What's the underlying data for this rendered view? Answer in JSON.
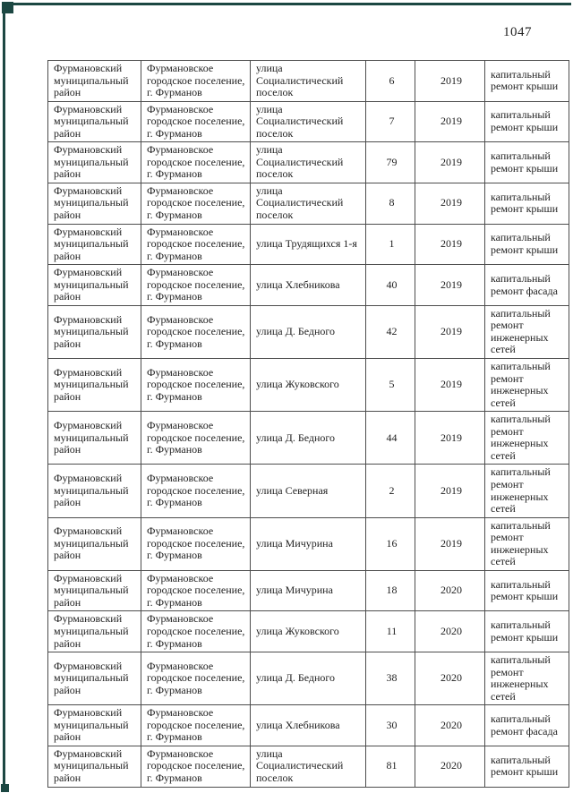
{
  "page_number": "1047",
  "accent_color": "#1c4742",
  "table": {
    "rows": [
      {
        "district": "Фурмановский муниципальный район",
        "settlement": "Фурмановское городское поселение, г. Фурманов",
        "street": "улица Социалистический поселок",
        "house": "6",
        "year": "2019",
        "work": "капитальный ремонт крыши"
      },
      {
        "district": "Фурмановский муниципальный район",
        "settlement": "Фурмановское городское поселение, г. Фурманов",
        "street": "улица Социалистический поселок",
        "house": "7",
        "year": "2019",
        "work": "капитальный ремонт крыши"
      },
      {
        "district": "Фурмановский муниципальный район",
        "settlement": "Фурмановское городское поселение, г. Фурманов",
        "street": "улица Социалистический поселок",
        "house": "79",
        "year": "2019",
        "work": "капитальный ремонт крыши"
      },
      {
        "district": "Фурмановский муниципальный район",
        "settlement": "Фурмановское городское поселение, г. Фурманов",
        "street": "улица Социалистический поселок",
        "house": "8",
        "year": "2019",
        "work": "капитальный ремонт крыши"
      },
      {
        "district": "Фурмановский муниципальный район",
        "settlement": "Фурмановское городское поселение, г. Фурманов",
        "street": "улица Трудящихся 1-я",
        "house": "1",
        "year": "2019",
        "work": "капитальный ремонт крыши"
      },
      {
        "district": "Фурмановский муниципальный район",
        "settlement": "Фурмановское городское поселение, г. Фурманов",
        "street": "улица Хлебникова",
        "house": "40",
        "year": "2019",
        "work": "капитальный ремонт фасада"
      },
      {
        "district": "Фурмановский муниципальный район",
        "settlement": "Фурмановское городское поселение, г. Фурманов",
        "street": "улица Д. Бедного",
        "house": "42",
        "year": "2019",
        "work": "капитальный ремонт инженерных сетей"
      },
      {
        "district": "Фурмановский муниципальный район",
        "settlement": "Фурмановское городское поселение, г. Фурманов",
        "street": "улица Жуковского",
        "house": "5",
        "year": "2019",
        "work": "капитальный ремонт инженерных сетей"
      },
      {
        "district": "Фурмановский муниципальный район",
        "settlement": "Фурмановское городское поселение, г. Фурманов",
        "street": "улица Д. Бедного",
        "house": "44",
        "year": "2019",
        "work": "капитальный ремонт инженерных сетей"
      },
      {
        "district": "Фурмановский муниципальный район",
        "settlement": "Фурмановское городское поселение, г. Фурманов",
        "street": "улица Северная",
        "house": "2",
        "year": "2019",
        "work": "капитальный ремонт инженерных сетей"
      },
      {
        "district": "Фурмановский муниципальный район",
        "settlement": "Фурмановское городское поселение, г. Фурманов",
        "street": "улица Мичурина",
        "house": "16",
        "year": "2019",
        "work": "капитальный ремонт инженерных сетей"
      },
      {
        "district": "Фурмановский муниципальный район",
        "settlement": "Фурмановское городское поселение, г. Фурманов",
        "street": "улица Мичурина",
        "house": "18",
        "year": "2020",
        "work": "капитальный ремонт крыши"
      },
      {
        "district": "Фурмановский муниципальный район",
        "settlement": "Фурмановское городское поселение, г. Фурманов",
        "street": "улица Жуковского",
        "house": "11",
        "year": "2020",
        "work": "капитальный ремонт крыши"
      },
      {
        "district": "Фурмановский муниципальный район",
        "settlement": "Фурмановское городское поселение, г. Фурманов",
        "street": "улица Д. Бедного",
        "house": "38",
        "year": "2020",
        "work": "капитальный ремонт инженерных сетей"
      },
      {
        "district": "Фурмановский муниципальный район",
        "settlement": "Фурмановское городское поселение, г. Фурманов",
        "street": "улица Хлебникова",
        "house": "30",
        "year": "2020",
        "work": "капитальный ремонт фасада"
      },
      {
        "district": "Фурмановский муниципальный район",
        "settlement": "Фурмановское городское поселение, г. Фурманов",
        "street": "улица Социалистический поселок",
        "house": "81",
        "year": "2020",
        "work": "капитальный ремонт крыши"
      }
    ]
  }
}
